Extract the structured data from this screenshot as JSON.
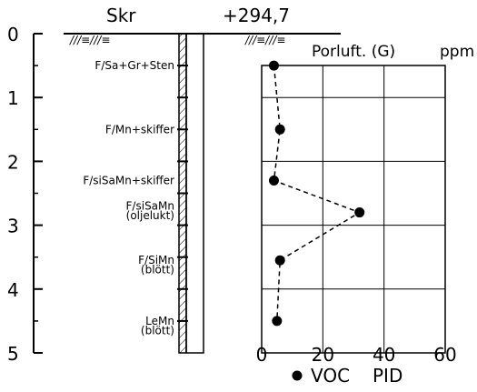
{
  "header": {
    "skr_label": "Skr",
    "elevation": "+294,7",
    "hatch_left": "///≡///≡",
    "hatch_right": "///≡///≡"
  },
  "depth_axis": {
    "ticks": [
      "0",
      "1",
      "2",
      "3",
      "4",
      "5"
    ],
    "min": 0,
    "max": 5
  },
  "soil_layers": [
    {
      "label": "F/Sa+Gr+Sten",
      "depth": 0.5
    },
    {
      "label": "F/Mn+skiffer",
      "depth": 1.5
    },
    {
      "label": "F/siSaMn+skiffer",
      "depth": 2.3
    },
    {
      "label": "F/siSaMn",
      "depth": 2.7
    },
    {
      "label": "(oljelukt)",
      "depth": 2.85
    },
    {
      "label": "F/SiMn",
      "depth": 3.55
    },
    {
      "label": "(blött)",
      "depth": 3.7
    },
    {
      "label": "LeMn",
      "depth": 4.5
    },
    {
      "label": "(blött)",
      "depth": 4.65
    }
  ],
  "chart_data": {
    "type": "line",
    "title": "Porluft. (G)",
    "unit": "ppm",
    "x_ticks": [
      "0",
      "20",
      "40",
      "60"
    ],
    "xlim": [
      0,
      60
    ],
    "ylim": [
      0,
      5
    ],
    "grid": true,
    "series": [
      {
        "name": "VOC",
        "points": [
          {
            "x": 4,
            "y": 0.5
          },
          {
            "x": 6,
            "y": 1.5
          },
          {
            "x": 4,
            "y": 2.3
          },
          {
            "x": 32,
            "y": 2.8
          },
          {
            "x": 6,
            "y": 3.55
          },
          {
            "x": 5,
            "y": 4.5
          }
        ]
      }
    ],
    "legend": {
      "marker_label": "VOC",
      "method_label": "PID"
    }
  }
}
